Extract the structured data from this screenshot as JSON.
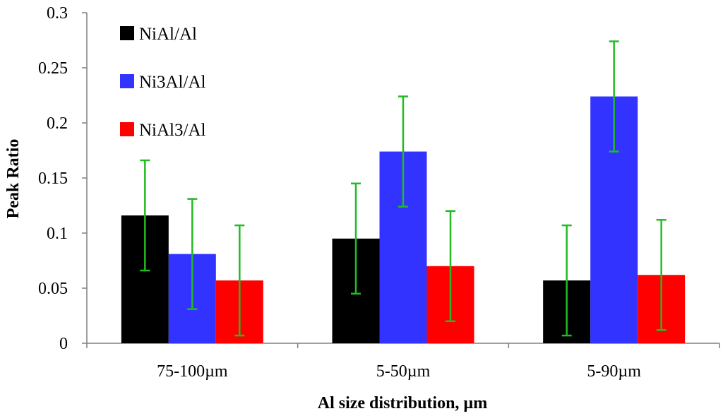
{
  "chart_data": {
    "type": "bar",
    "title": "",
    "xlabel": "Al size distribution, µm",
    "ylabel": "Peak Ratio",
    "ylim": [
      0,
      0.3
    ],
    "yticks": [
      "0",
      "0.05",
      "0.1",
      "0.15",
      "0.2",
      "0.25",
      "0.3"
    ],
    "ytick_values": [
      0,
      0.05,
      0.1,
      0.15,
      0.2,
      0.25,
      0.3
    ],
    "grid": false,
    "legend_position": "top-left",
    "categories": [
      "75-100µm",
      "5-50µm",
      "5-90µm"
    ],
    "series": [
      {
        "name": "NiAl/Al",
        "color": "#000000",
        "values": [
          0.116,
          0.095,
          0.057
        ],
        "errors": [
          0.05,
          0.05,
          0.05
        ]
      },
      {
        "name": "Ni3Al/Al",
        "color": "#3333ff",
        "values": [
          0.081,
          0.174,
          0.224
        ],
        "errors": [
          0.05,
          0.05,
          0.05
        ]
      },
      {
        "name": "NiAl3/Al",
        "color": "#ff0000",
        "values": [
          0.057,
          0.07,
          0.062
        ],
        "errors": [
          0.05,
          0.05,
          0.05
        ]
      }
    ],
    "error_bar_color": "#22bb22"
  }
}
